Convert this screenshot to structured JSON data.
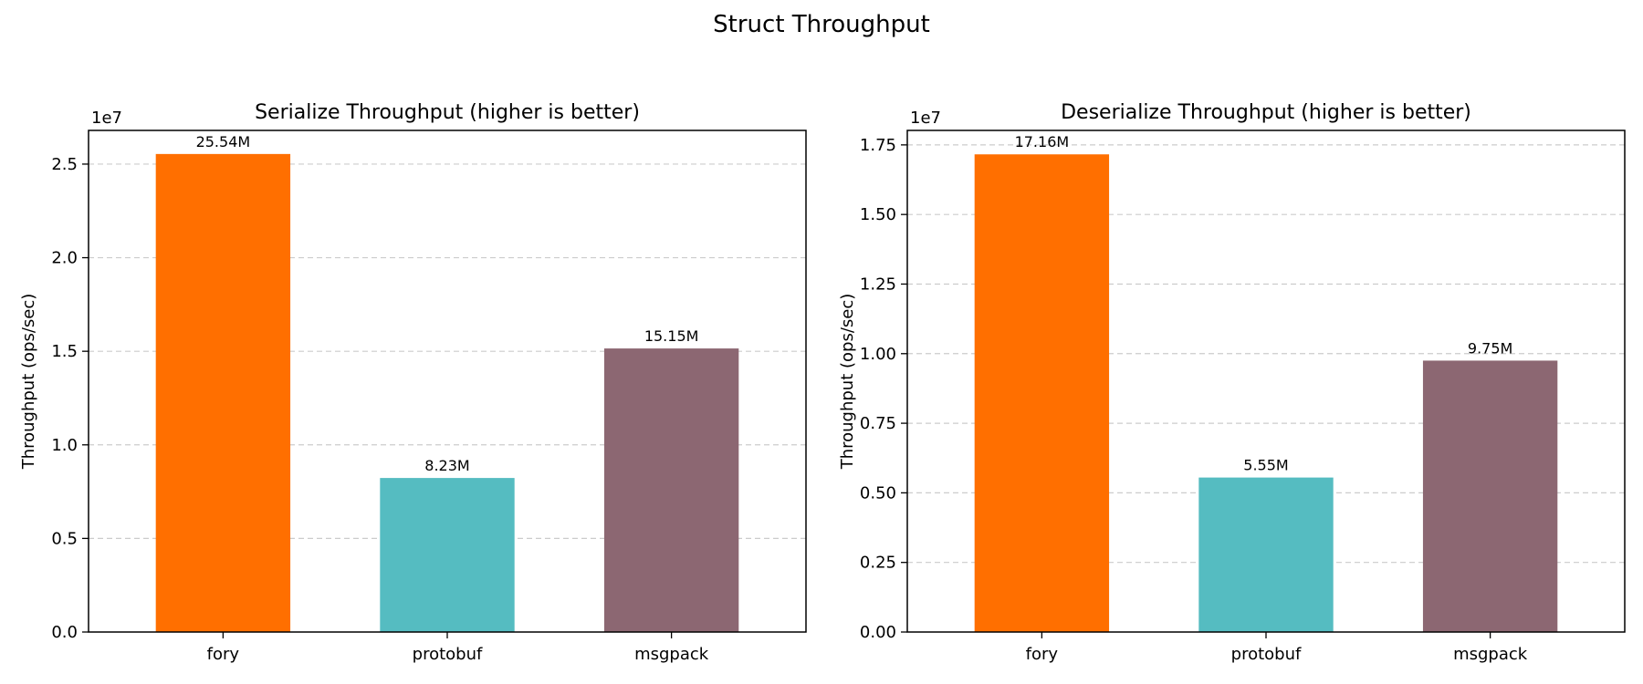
{
  "figure": {
    "title": "Struct Throughput"
  },
  "colors": {
    "fory": "#ff6f00",
    "protobuf": "#55bcc1",
    "msgpack": "#8c6772",
    "grid": "#cccccc",
    "axis": "#000000"
  },
  "chart_data": [
    {
      "type": "bar",
      "title": "Serialize Throughput (higher is better)",
      "xlabel": "",
      "ylabel": "Throughput (ops/sec)",
      "offset_label": "1e7",
      "categories": [
        "fory",
        "protobuf",
        "msgpack"
      ],
      "values": [
        25540000,
        8230000,
        15150000
      ],
      "data_labels": [
        "25.54M",
        "8.23M",
        "15.15M"
      ],
      "ylim": [
        0,
        26800000
      ],
      "yticks": [
        0,
        5000000,
        10000000,
        15000000,
        20000000,
        25000000
      ],
      "ytick_labels": [
        "0.0",
        "0.5",
        "1.0",
        "1.5",
        "2.0",
        "2.5"
      ],
      "grid": "y-dashed",
      "legend": "none"
    },
    {
      "type": "bar",
      "title": "Deserialize Throughput (higher is better)",
      "xlabel": "",
      "ylabel": "Throughput (ops/sec)",
      "offset_label": "1e7",
      "categories": [
        "fory",
        "protobuf",
        "msgpack"
      ],
      "values": [
        17160000,
        5550000,
        9750000
      ],
      "data_labels": [
        "17.16M",
        "5.55M",
        "9.75M"
      ],
      "ylim": [
        0,
        18020000
      ],
      "yticks": [
        0,
        2500000,
        5000000,
        7500000,
        10000000,
        12500000,
        15000000,
        17500000
      ],
      "ytick_labels": [
        "0.00",
        "0.25",
        "0.50",
        "0.75",
        "1.00",
        "1.25",
        "1.50",
        "1.75"
      ],
      "grid": "y-dashed",
      "legend": "none"
    }
  ]
}
